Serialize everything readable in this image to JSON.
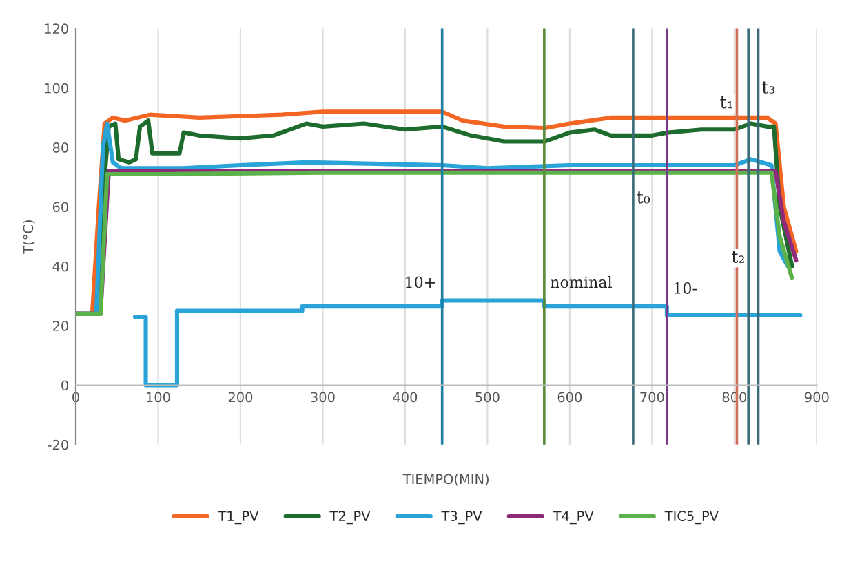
{
  "chart_data": {
    "type": "line",
    "xlabel": "TIEMPO(MIN)",
    "ylabel": "T(°C)",
    "xlim": [
      0,
      900
    ],
    "xticks": [
      0,
      100,
      200,
      300,
      400,
      500,
      600,
      700,
      800,
      900
    ],
    "ylim": [
      -20,
      120
    ],
    "yticks": [
      -20,
      0,
      20,
      40,
      60,
      80,
      100,
      120
    ],
    "grid": "x",
    "legend": "bottom",
    "marker": "none",
    "line_style": "solid",
    "series": [
      {
        "name": "T1_PV",
        "color": "#f26522",
        "x": [
          0,
          20,
          28,
          35,
          45,
          60,
          90,
          150,
          200,
          250,
          300,
          350,
          400,
          445,
          470,
          520,
          570,
          600,
          650,
          700,
          750,
          800,
          840,
          850,
          860,
          875
        ],
        "values": [
          24,
          24,
          60,
          88,
          90,
          89,
          91,
          90,
          90.5,
          91,
          92,
          92,
          92,
          92,
          89,
          87,
          86.5,
          88,
          90,
          90,
          90,
          90,
          90,
          88,
          60,
          45
        ]
      },
      {
        "name": "T2_PV",
        "color": "#1e6b2e",
        "x": [
          0,
          25,
          35,
          40,
          48,
          52,
          65,
          73,
          78,
          88,
          93,
          110,
          126,
          131,
          150,
          200,
          240,
          280,
          300,
          350,
          400,
          445,
          480,
          520,
          570,
          600,
          630,
          650,
          700,
          720,
          760,
          800,
          820,
          840,
          848,
          855,
          870
        ],
        "values": [
          24,
          24,
          70,
          87,
          88,
          76,
          75,
          76,
          87,
          89,
          78,
          78,
          78,
          85,
          84,
          83,
          84,
          88,
          87,
          88,
          86,
          87,
          84,
          82,
          82,
          85,
          86,
          84,
          84,
          85,
          86,
          86,
          88,
          87,
          87,
          60,
          40
        ]
      },
      {
        "name": "T3_PV",
        "color": "#29a3d8",
        "x": [
          0,
          25,
          33,
          38,
          45,
          55,
          130,
          200,
          280,
          445,
          500,
          600,
          700,
          800,
          820,
          845,
          855,
          865
        ],
        "values": [
          24,
          24,
          80,
          88,
          75,
          73,
          73,
          74,
          75,
          74,
          73,
          74,
          74,
          74,
          76,
          74,
          45,
          40
        ]
      },
      {
        "color": "#29a3d8",
        "type": "step",
        "x": [
          72,
          85,
          85,
          123,
          123,
          270,
          275,
          445,
          445,
          569,
          569,
          718,
          718,
          880
        ],
        "values": [
          23,
          23,
          0,
          0,
          25,
          25,
          26.5,
          26.5,
          28.5,
          28.5,
          26.5,
          26.5,
          23.5,
          23.5
        ]
      },
      {
        "name": "T4_PV",
        "color": "#8e2a7a",
        "x": [
          0,
          30,
          40,
          850,
          860,
          875
        ],
        "values": [
          24,
          24,
          72,
          72,
          55,
          42
        ]
      },
      {
        "name": "TIC5_PV",
        "color": "#5cb24a",
        "x": [
          0,
          30,
          38,
          100,
          300,
          600,
          845,
          855,
          870
        ],
        "values": [
          24,
          24,
          71,
          71,
          71.5,
          71.5,
          71.5,
          50,
          36
        ]
      }
    ],
    "ref_lines": [
      {
        "axis": "x",
        "value": 445,
        "color": "#1f7fa6"
      },
      {
        "axis": "x",
        "value": 569,
        "color": "#5a8a3a"
      },
      {
        "axis": "x",
        "value": 718,
        "color": "#7a3a8a"
      },
      {
        "axis": "x",
        "value": 677,
        "label": "t₀",
        "color": "#3a6a7a"
      },
      {
        "axis": "x",
        "value": 803,
        "label": "t₁",
        "color": "#d0705a"
      },
      {
        "axis": "x",
        "value": 817,
        "label": "t₂",
        "color": "#3a6a7a"
      },
      {
        "axis": "x",
        "value": 829,
        "label": "t₃",
        "color": "#3a6a7a"
      }
    ],
    "annotations": [
      {
        "text": "10+",
        "x": 445,
        "y": 28.5
      },
      {
        "text": "nominal",
        "x": 569,
        "y": 28.5
      },
      {
        "text": "10-",
        "x": 718,
        "y": 26.5
      }
    ]
  }
}
